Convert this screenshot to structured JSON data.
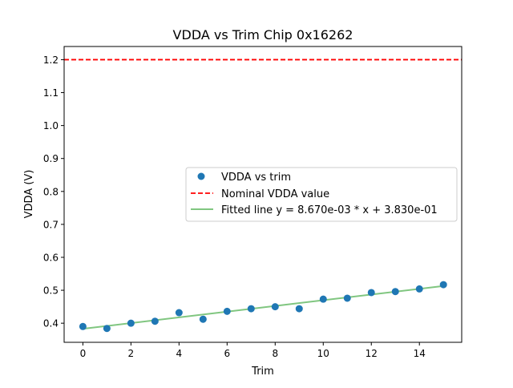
{
  "chart_data": {
    "type": "scatter",
    "title": "VDDA vs Trim Chip 0x16262",
    "xlabel": "Trim",
    "ylabel": "VDDA (V)",
    "xlim": [
      -0.78,
      15.76
    ],
    "ylim": [
      0.342,
      1.24
    ],
    "xticks": [
      0,
      2,
      4,
      6,
      8,
      10,
      12,
      14
    ],
    "xtick_labels": [
      "0",
      "2",
      "4",
      "6",
      "8",
      "10",
      "12",
      "14"
    ],
    "yticks": [
      0.4,
      0.5,
      0.6,
      0.7,
      0.8,
      0.9,
      1.0,
      1.1,
      1.2
    ],
    "ytick_labels": [
      "0.4",
      "0.5",
      "0.6",
      "0.7",
      "0.8",
      "0.9",
      "1.0",
      "1.1",
      "1.2"
    ],
    "grid": false,
    "legend_position": "center-right",
    "series": [
      {
        "name": "VDDA vs trim",
        "kind": "scatter",
        "color": "#1f77b4",
        "x": [
          0,
          1,
          2,
          3,
          4,
          5,
          6,
          7,
          8,
          9,
          10,
          11,
          12,
          13,
          14,
          15
        ],
        "y": [
          0.39,
          0.384,
          0.4,
          0.406,
          0.432,
          0.412,
          0.436,
          0.444,
          0.45,
          0.444,
          0.473,
          0.476,
          0.493,
          0.496,
          0.504,
          0.517
        ]
      },
      {
        "name": "Nominal VDDA value",
        "kind": "hline",
        "color": "#ff0000",
        "linestyle": "dashed",
        "y": 1.2
      },
      {
        "name": "Fitted line y = 8.670e-03 * x + 3.830e-01",
        "kind": "line",
        "color": "#2ca02c",
        "alpha": 0.6,
        "slope": 0.00867,
        "intercept": 0.383,
        "x": [
          0,
          15
        ]
      }
    ]
  }
}
